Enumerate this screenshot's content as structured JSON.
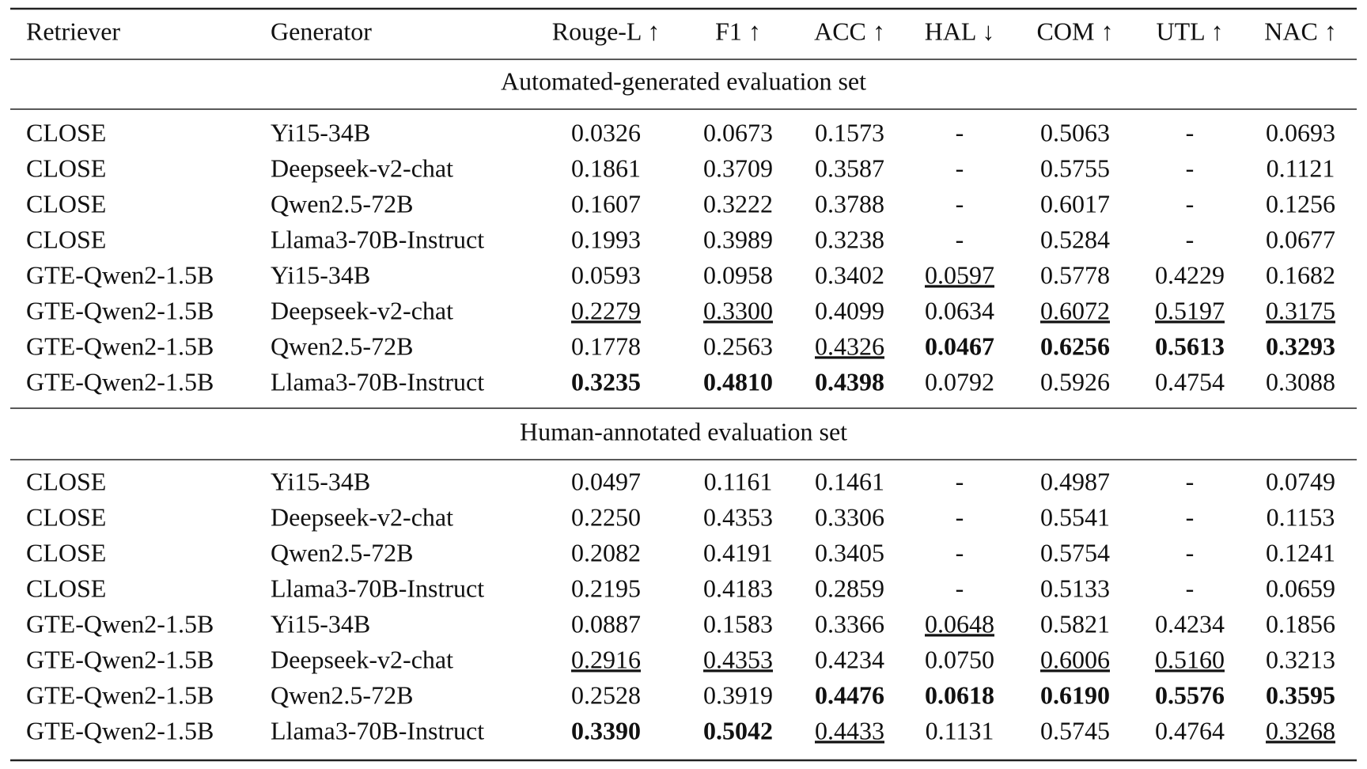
{
  "table": {
    "header": [
      "Retriever",
      "Generator",
      "Rouge-L ↑",
      "F1 ↑",
      "ACC ↑",
      "HAL ↓",
      "COM ↑",
      "UTL ↑",
      "NAC ↑"
    ],
    "sections": [
      {
        "title": "Automated-generated evaluation set",
        "rows": [
          [
            "CLOSE",
            "Yi15-34B",
            "0.0326",
            "0.0673",
            "0.1573",
            "-",
            "0.5063",
            "-",
            "0.0693"
          ],
          [
            "CLOSE",
            "Deepseek-v2-chat",
            "0.1861",
            "0.3709",
            "0.3587",
            "-",
            "0.5755",
            "-",
            "0.1121"
          ],
          [
            "CLOSE",
            "Qwen2.5-72B",
            "0.1607",
            "0.3222",
            "0.3788",
            "-",
            "0.6017",
            "-",
            "0.1256"
          ],
          [
            "CLOSE",
            "Llama3-70B-Instruct",
            "0.1993",
            "0.3989",
            "0.3238",
            "-",
            "0.5284",
            "-",
            "0.0677"
          ],
          [
            "GTE-Qwen2-1.5B",
            "Yi15-34B",
            "0.0593",
            "0.0958",
            "0.3402",
            "0.0597",
            "0.5778",
            "0.4229",
            "0.1682"
          ],
          [
            "GTE-Qwen2-1.5B",
            "Deepseek-v2-chat",
            "0.2279",
            "0.3300",
            "0.4099",
            "0.0634",
            "0.6072",
            "0.5197",
            "0.3175"
          ],
          [
            "GTE-Qwen2-1.5B",
            "Qwen2.5-72B",
            "0.1778",
            "0.2563",
            "0.4326",
            "0.0467",
            "0.6256",
            "0.5613",
            "0.3293"
          ],
          [
            "GTE-Qwen2-1.5B",
            "Llama3-70B-Instruct",
            "0.3235",
            "0.4810",
            "0.4398",
            "0.0792",
            "0.5926",
            "0.4754",
            "0.3088"
          ]
        ],
        "bold": [
          [
            6,
            5
          ],
          [
            6,
            6
          ],
          [
            6,
            7
          ],
          [
            6,
            8
          ],
          [
            7,
            2
          ],
          [
            7,
            3
          ],
          [
            7,
            4
          ]
        ],
        "underline": [
          [
            4,
            5
          ],
          [
            5,
            2
          ],
          [
            5,
            3
          ],
          [
            5,
            6
          ],
          [
            5,
            7
          ],
          [
            5,
            8
          ],
          [
            6,
            4
          ]
        ]
      },
      {
        "title": "Human-annotated evaluation set",
        "rows": [
          [
            "CLOSE",
            "Yi15-34B",
            "0.0497",
            "0.1161",
            "0.1461",
            "-",
            "0.4987",
            "-",
            "0.0749"
          ],
          [
            "CLOSE",
            "Deepseek-v2-chat",
            "0.2250",
            "0.4353",
            "0.3306",
            "-",
            "0.5541",
            "-",
            "0.1153"
          ],
          [
            "CLOSE",
            "Qwen2.5-72B",
            "0.2082",
            "0.4191",
            "0.3405",
            "-",
            "0.5754",
            "-",
            "0.1241"
          ],
          [
            "CLOSE",
            "Llama3-70B-Instruct",
            "0.2195",
            "0.4183",
            "0.2859",
            "-",
            "0.5133",
            "-",
            "0.0659"
          ],
          [
            "GTE-Qwen2-1.5B",
            "Yi15-34B",
            "0.0887",
            "0.1583",
            "0.3366",
            "0.0648",
            "0.5821",
            "0.4234",
            "0.1856"
          ],
          [
            "GTE-Qwen2-1.5B",
            "Deepseek-v2-chat",
            "0.2916",
            "0.4353",
            "0.4234",
            "0.0750",
            "0.6006",
            "0.5160",
            "0.3213"
          ],
          [
            "GTE-Qwen2-1.5B",
            "Qwen2.5-72B",
            "0.2528",
            "0.3919",
            "0.4476",
            "0.0618",
            "0.6190",
            "0.5576",
            "0.3595"
          ],
          [
            "GTE-Qwen2-1.5B",
            "Llama3-70B-Instruct",
            "0.3390",
            "0.5042",
            "0.4433",
            "0.1131",
            "0.5745",
            "0.4764",
            "0.3268"
          ]
        ],
        "bold": [
          [
            6,
            4
          ],
          [
            6,
            5
          ],
          [
            6,
            6
          ],
          [
            6,
            7
          ],
          [
            6,
            8
          ],
          [
            7,
            2
          ],
          [
            7,
            3
          ]
        ],
        "underline": [
          [
            4,
            5
          ],
          [
            5,
            2
          ],
          [
            5,
            3
          ],
          [
            5,
            6
          ],
          [
            5,
            7
          ],
          [
            7,
            4
          ],
          [
            7,
            8
          ]
        ]
      }
    ]
  }
}
